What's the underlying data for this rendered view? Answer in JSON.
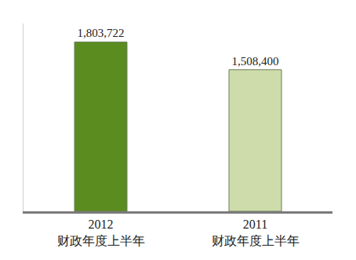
{
  "chart_data": {
    "type": "bar",
    "categories": [
      "2012 财政年度上半年",
      "2011 财政年度上半年"
    ],
    "values": [
      1803722,
      1508400
    ],
    "value_labels": [
      "1,803,722",
      "1,508,400"
    ],
    "colors": [
      "#5b8c1f",
      "#cddcaa"
    ],
    "data_labels": true,
    "tick_labels": "x",
    "ylim": [
      0,
      2000000
    ],
    "grid": false
  }
}
